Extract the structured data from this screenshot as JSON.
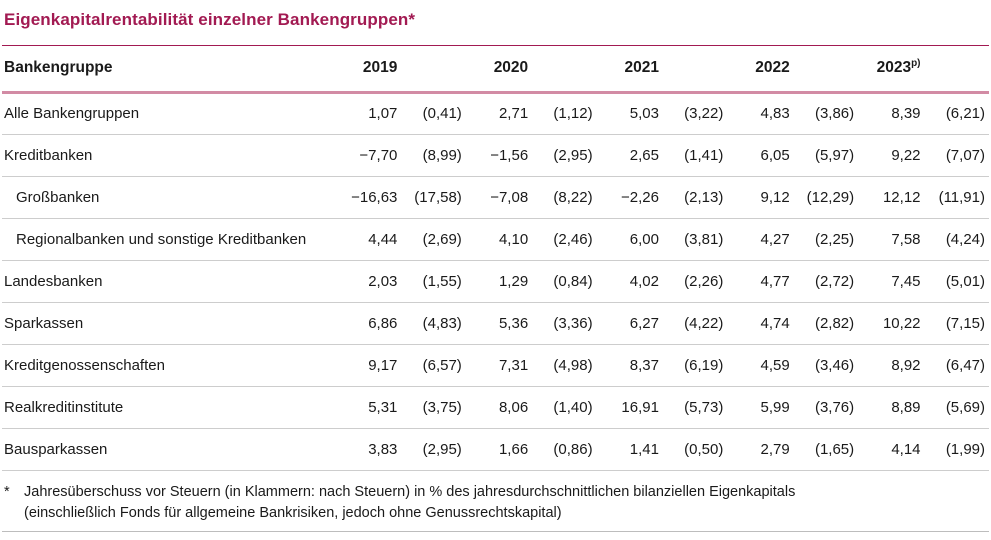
{
  "title": "Eigenkapitalrentabilität einzelner Bankengruppen*",
  "colors": {
    "accent": "#a21a52",
    "header_rule": "#d28ba4",
    "row_line": "#cdcdcd",
    "bottom_rule": "#bdbdbd",
    "text": "#1a1a1a"
  },
  "table": {
    "label_header": "Bankengruppe",
    "years": [
      {
        "label": "2019",
        "sup": ""
      },
      {
        "label": "2020",
        "sup": ""
      },
      {
        "label": "2021",
        "sup": ""
      },
      {
        "label": "2022",
        "sup": ""
      },
      {
        "label": "2023",
        "sup": "p)"
      }
    ],
    "rows": [
      {
        "label": "Alle Bankengruppen",
        "indent": false,
        "values": [
          "1,07",
          "(0,41)",
          "2,71",
          "(1,12)",
          "5,03",
          "(3,22)",
          "4,83",
          "(3,86)",
          "8,39",
          "(6,21)"
        ]
      },
      {
        "label": "Kreditbanken",
        "indent": false,
        "values": [
          "−7,70",
          "(8,99)",
          "−1,56",
          "(2,95)",
          "2,65",
          "(1,41)",
          "6,05",
          "(5,97)",
          "9,22",
          "(7,07)"
        ]
      },
      {
        "label": "Großbanken",
        "indent": true,
        "values": [
          "−16,63",
          "(17,58)",
          "−7,08",
          "(8,22)",
          "−2,26",
          "(2,13)",
          "9,12",
          "(12,29)",
          "12,12",
          "(11,91)"
        ]
      },
      {
        "label": "Regionalbanken und sonstige Kreditbanken",
        "indent": true,
        "values": [
          "4,44",
          "(2,69)",
          "4,10",
          "(2,46)",
          "6,00",
          "(3,81)",
          "4,27",
          "(2,25)",
          "7,58",
          "(4,24)"
        ]
      },
      {
        "label": "Landesbanken",
        "indent": false,
        "values": [
          "2,03",
          "(1,55)",
          "1,29",
          "(0,84)",
          "4,02",
          "(2,26)",
          "4,77",
          "(2,72)",
          "7,45",
          "(5,01)"
        ]
      },
      {
        "label": "Sparkassen",
        "indent": false,
        "values": [
          "6,86",
          "(4,83)",
          "5,36",
          "(3,36)",
          "6,27",
          "(4,22)",
          "4,74",
          "(2,82)",
          "10,22",
          "(7,15)"
        ]
      },
      {
        "label": "Kreditgenossenschaften",
        "indent": false,
        "values": [
          "9,17",
          "(6,57)",
          "7,31",
          "(4,98)",
          "8,37",
          "(6,19)",
          "4,59",
          "(3,46)",
          "8,92",
          "(6,47)"
        ]
      },
      {
        "label": "Realkreditinstitute",
        "indent": false,
        "values": [
          "5,31",
          "(3,75)",
          "8,06",
          "(1,40)",
          "16,91",
          "(5,73)",
          "5,99",
          "(3,76)",
          "8,89",
          "(5,69)"
        ]
      },
      {
        "label": "Bausparkassen",
        "indent": false,
        "values": [
          "3,83",
          "(2,95)",
          "1,66",
          "(0,86)",
          "1,41",
          "(0,50)",
          "2,79",
          "(1,65)",
          "4,14",
          "(1,99)"
        ]
      }
    ]
  },
  "footnote": {
    "marker": "*",
    "lines": [
      "Jahresüberschuss vor Steuern (in Klammern: nach Steuern) in % des jahresdurchschnittlichen bilanziellen Eigenkapitals",
      "(einschließlich Fonds für allgemeine Bankrisiken, jedoch ohne Genussrechtskapital)"
    ]
  }
}
